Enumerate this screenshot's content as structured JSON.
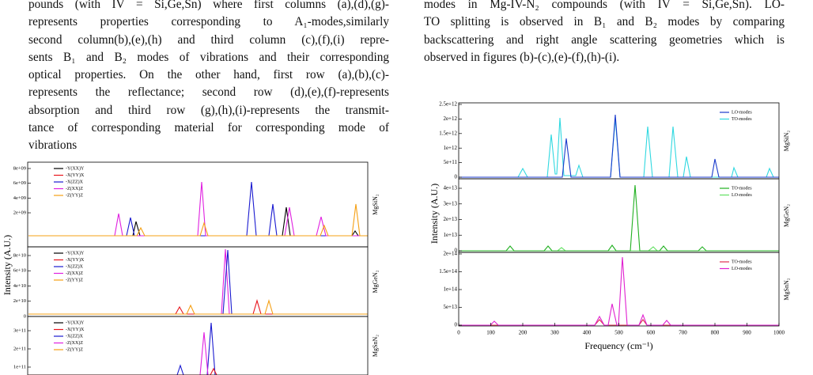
{
  "left_text": {
    "lines": [
      "pounds (with IV = Si,Ge,Sn) where first columns (a),(d),(g)-",
      "represents properties corresponding to A₁-modes,similarly",
      "second column(b),(e),(h) and third column (c),(f),(i) repre-",
      "sents B₁ and B₂ modes of vibrations and their corresponding",
      "optical properties. On the other hand, first row (a),(b),(c)-",
      "represents the reflectance; second row (d),(e),(f)-represents",
      "absorption and third row (g),(h),(i)-represents the transmit-",
      "tance of corresponding material for corresponding mode of",
      "vibrations"
    ]
  },
  "right_text": {
    "lines": [
      "modes in Mg-IV-N₂ compounds (with IV = Si,Ge,Sn). LO-",
      "TO splitting is observed in B₁ and B₂ modes by comparing",
      "backscattering and right angle scattering geometries which is",
      "observed in figures (b)-(c),(e)-(f),(h)-(i)."
    ]
  },
  "figures": [
    {
      "ylabel": "Intensity (A.U.)",
      "panels": [
        {
          "side_label": "MgSiN₂",
          "yticks": [
            "8e+09",
            "6e+09",
            "4e+09",
            "2e+09"
          ],
          "legend": [
            {
              "label": "-Y(XX)Y",
              "color": "#000000"
            },
            {
              "label": "-X(YY)X",
              "color": "#e8141c"
            },
            {
              "label": "-X(ZZ)X",
              "color": "#1a1ad0"
            },
            {
              "label": "-Z(XX)Z",
              "color": "#e020e0"
            },
            {
              "label": "-Z(YY)Z",
              "color": "#f5a015"
            }
          ]
        },
        {
          "side_label": "MgGeN₂",
          "yticks": [
            "8e+10",
            "6e+10",
            "4e+10",
            "2e+10",
            "0"
          ],
          "legend": [
            {
              "label": "-Y(XX)Y",
              "color": "#000000"
            },
            {
              "label": "-X(YY)X",
              "color": "#e8141c"
            },
            {
              "label": "-X(ZZ)X",
              "color": "#1a1ad0"
            },
            {
              "label": "-Z(XX)Z",
              "color": "#e020e0"
            },
            {
              "label": "-Z(YY)Z",
              "color": "#f5a015"
            }
          ]
        },
        {
          "side_label": "MgSnN₂",
          "yticks": [
            "3e+11",
            "2e+11",
            "1e+11"
          ],
          "legend": [
            {
              "label": "-Y(XX)Y",
              "color": "#000000"
            },
            {
              "label": "-X(YY)X",
              "color": "#e8141c"
            },
            {
              "label": "-X(ZZ)X",
              "color": "#1a1ad0"
            },
            {
              "label": "-Z(XX)Z",
              "color": "#e020e0"
            },
            {
              "label": "-Z(YY)Z",
              "color": "#f5a015"
            }
          ]
        }
      ]
    },
    {
      "ylabel": "Intensity (A.U.)",
      "xlabel": "Frequency (cm⁻¹)",
      "xticks": [
        "0",
        "100",
        "200",
        "300",
        "400",
        "500",
        "600",
        "700",
        "800",
        "900",
        "1000"
      ],
      "panels": [
        {
          "side_label": "MgSiN₂",
          "yticks": [
            "2.5e+12",
            "2e+12",
            "1.5e+12",
            "1e+12",
            "5e+11",
            "0"
          ],
          "legend": [
            {
              "label": "LO-modes",
              "color": "#1a3acc"
            },
            {
              "label": "TO-modes",
              "color": "#2fd8e0"
            }
          ]
        },
        {
          "side_label": "MgGeN₂",
          "yticks": [
            "4e+13",
            "3e+13",
            "2e+13",
            "1e+13",
            "0"
          ],
          "legend": [
            {
              "label": "TO-modes",
              "color": "#20b020"
            },
            {
              "label": "LO-modes",
              "color": "#60e060"
            }
          ]
        },
        {
          "side_label": "MgSnN₂",
          "yticks": [
            "2e+14",
            "1.5e+14",
            "1e+14",
            "5e+13",
            "0"
          ],
          "legend": [
            {
              "label": "TO-modes",
              "color": "#e03050"
            },
            {
              "label": "LO-modes",
              "color": "#e020d0"
            }
          ]
        }
      ]
    }
  ]
}
